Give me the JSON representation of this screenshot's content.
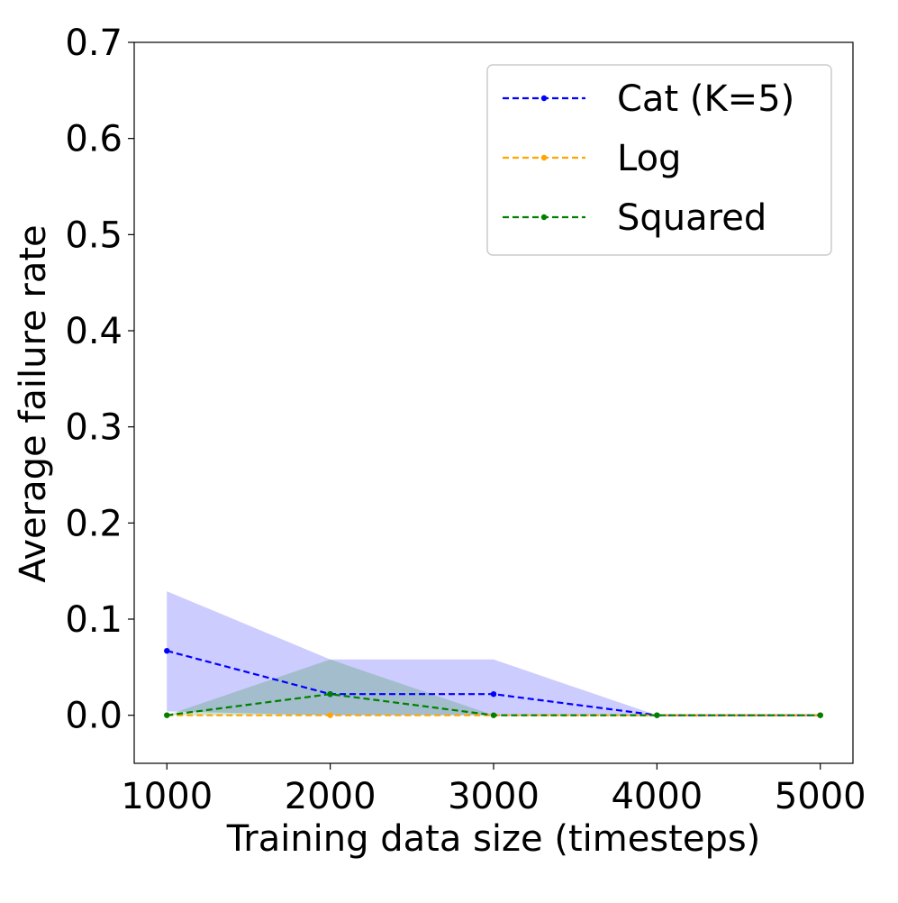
{
  "chart_data": {
    "type": "line",
    "title": "",
    "xlabel": "Training data size (timesteps)",
    "ylabel": "Average failure rate",
    "xlim": [
      800,
      5200
    ],
    "ylim": [
      -0.05,
      0.7
    ],
    "xticks": [
      1000,
      2000,
      3000,
      4000,
      5000
    ],
    "xtick_labels": [
      "1000",
      "2000",
      "3000",
      "4000",
      "5000"
    ],
    "yticks": [
      0.0,
      0.1,
      0.2,
      0.3,
      0.4,
      0.5,
      0.6,
      0.7
    ],
    "ytick_labels": [
      "0.0",
      "0.1",
      "0.2",
      "0.3",
      "0.4",
      "0.5",
      "0.6",
      "0.7"
    ],
    "grid": false,
    "legend_position": "top-right",
    "x": [
      1000,
      2000,
      3000,
      4000,
      5000
    ],
    "series": [
      {
        "name": "Cat (K=5)",
        "color": "#0000ff",
        "fill_color": "#0000ff",
        "values": [
          0.067,
          0.022,
          0.022,
          0.0,
          0.0
        ],
        "lower": [
          0.004,
          0.0,
          0.0,
          0.0,
          0.0
        ],
        "upper": [
          0.129,
          0.058,
          0.058,
          0.0,
          0.0
        ]
      },
      {
        "name": "Log",
        "color": "#ffa500",
        "fill_color": "#ffa500",
        "values": [
          0.0,
          0.0,
          0.0,
          0.0,
          0.0
        ],
        "lower": [
          0.0,
          0.0,
          0.0,
          0.0,
          0.0
        ],
        "upper": [
          0.0,
          0.0,
          0.0,
          0.0,
          0.0
        ]
      },
      {
        "name": "Squared",
        "color": "#008000",
        "fill_color": "#008000",
        "values": [
          0.0,
          0.022,
          0.0,
          0.0,
          0.0
        ],
        "lower": [
          0.0,
          0.0,
          0.0,
          0.0,
          0.0
        ],
        "upper": [
          0.0,
          0.058,
          0.0,
          0.0,
          0.0
        ]
      }
    ]
  }
}
